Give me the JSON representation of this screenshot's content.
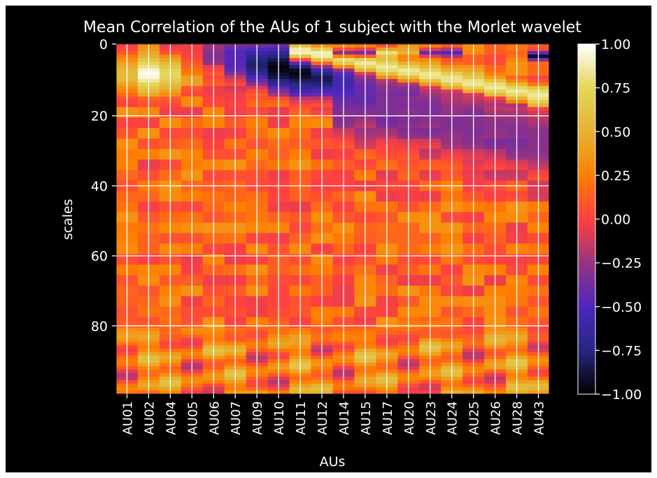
{
  "chart_data": {
    "type": "heatmap",
    "title": "Mean Correlation of the AUs of 1 subject with the Morlet wavelet",
    "xlabel": "AUs",
    "ylabel": "scales",
    "x_categories": [
      "AU01",
      "AU02",
      "AU04",
      "AU05",
      "AU06",
      "AU07",
      "AU09",
      "AU10",
      "AU11",
      "AU12",
      "AU14",
      "AU15",
      "AU17",
      "AU20",
      "AU23",
      "AU24",
      "AU25",
      "AU26",
      "AU28",
      "AU43"
    ],
    "y_ticks": [
      0,
      20,
      40,
      60,
      80
    ],
    "y_range": [
      0,
      99
    ],
    "colorbar": {
      "range": [
        -1.0,
        1.0
      ],
      "ticks": [
        1.0,
        0.75,
        0.5,
        0.25,
        0.0,
        -0.25,
        -0.5,
        -0.75,
        -1.0
      ],
      "tick_labels": [
        "1.00",
        "0.75",
        "0.50",
        "0.25",
        "0.00",
        "−0.25",
        "−0.50",
        "−0.75",
        "−1.00"
      ],
      "colormap": "CMRmap",
      "colormap_stops": [
        "#000000",
        "#262680",
        "#4d26bf",
        "#993380",
        "#ff4040",
        "#ff7f00",
        "#e5b333",
        "#e6d659",
        "#ffffff"
      ]
    },
    "grid": true,
    "background": "#000000",
    "grid_color": "#ffffff",
    "description_of_values": {
      "upper_scales": "strong positive (~1.0) for AU01-AU04 at scales 5-12; strong negative (~-1.0) band from AU06 to AU14 at scales 3-20; positive diagonal ridge (0.6-0.9) from AU09 at scale 2 to AU43 at scale 15",
      "mid_scales": "values near 0 to 0.25 with small patches around -0.3 to 0.3",
      "lower_scales": "alternating patches between -0.5 and 0.6 at scales 80-99"
    }
  }
}
